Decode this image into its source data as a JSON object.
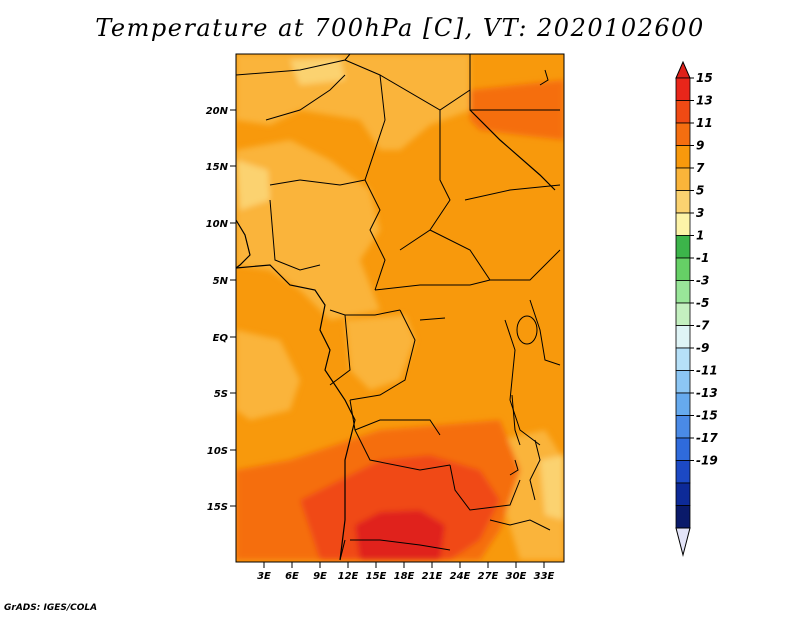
{
  "title": "Temperature at 700hPa [C], VT: 2020102600",
  "footer": "GrADS: IGES/COLA",
  "map": {
    "lat_labels": [
      "20N",
      "15N",
      "10N",
      "5N",
      "EQ",
      "5S",
      "10S",
      "15S"
    ],
    "lon_labels": [
      "3E",
      "6E",
      "9E",
      "12E",
      "15E",
      "18E",
      "21E",
      "24E",
      "27E",
      "30E",
      "33E"
    ]
  },
  "colorbar": {
    "labels": [
      "15",
      "13",
      "11",
      "9",
      "7",
      "5",
      "3",
      "1",
      "-1",
      "-3",
      "-5",
      "-7",
      "-9",
      "-11",
      "-13",
      "-15",
      "-17",
      "-19"
    ],
    "colors": [
      "#e8261a",
      "#f04a14",
      "#f56e10",
      "#f8990c",
      "#fab43a",
      "#fbd270",
      "#fdf3a8",
      "#3cb44a",
      "#66d066",
      "#99e699",
      "#c4f0c0",
      "#dff4f6",
      "#b6e0f8",
      "#8cc6f4",
      "#66aaee",
      "#4a8ae6",
      "#2f6bdc",
      "#1c49c4",
      "#0d2a98",
      "#0a1a6a"
    ],
    "max_color": "#e0211a",
    "min_color": "#e3e4f8"
  }
}
